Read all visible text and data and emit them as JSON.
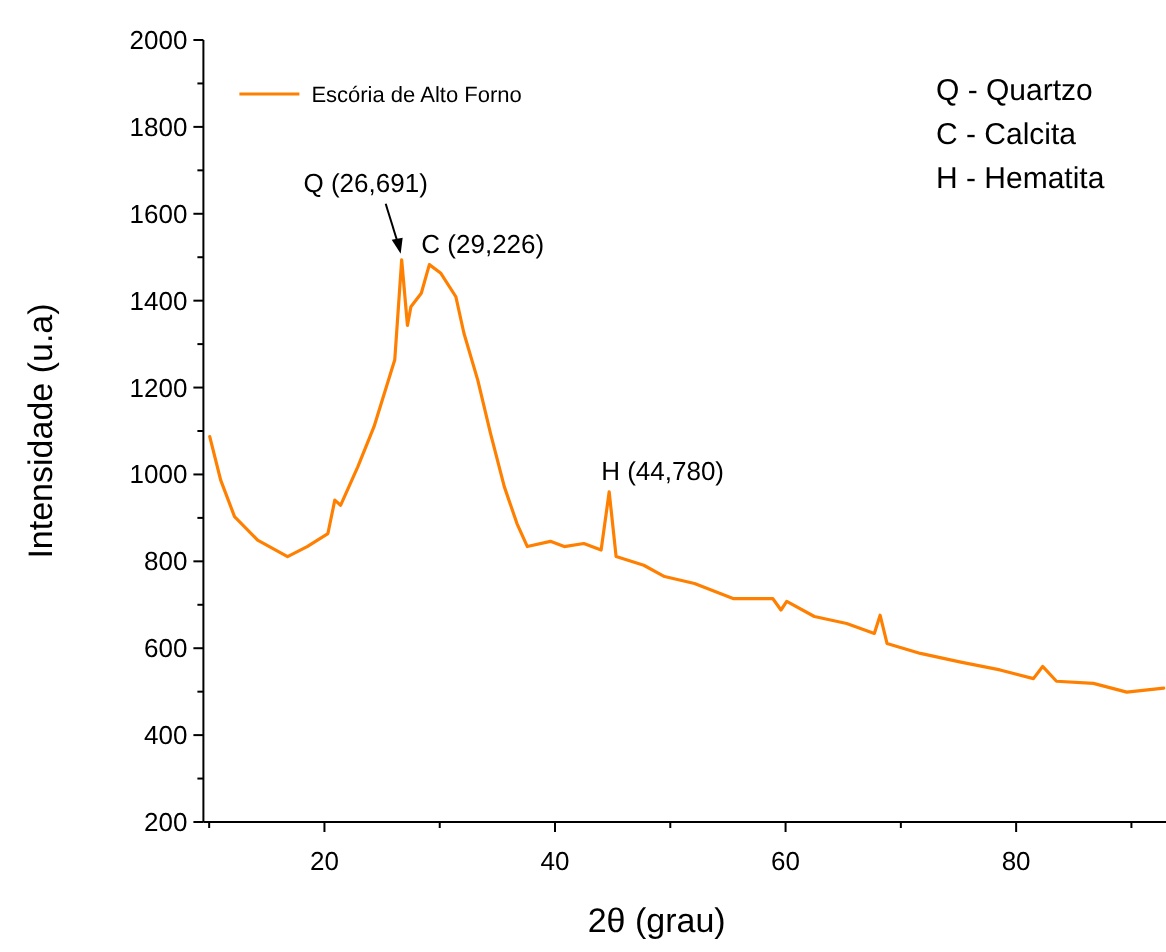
{
  "chart_data": {
    "type": "line",
    "xlabel": "2θ (grau)",
    "ylabel": "Intensidade (u.a)",
    "xlim": [
      9.5,
      93
    ],
    "ylim": [
      200,
      2000
    ],
    "xticks": [
      {
        "value": 10,
        "label": null
      },
      20,
      {
        "value": 30,
        "label": null
      },
      40,
      {
        "value": 50,
        "label": null
      },
      60,
      {
        "value": 70,
        "label": null
      },
      80,
      {
        "value": 90,
        "label": null
      }
    ],
    "yticks": [
      200,
      {
        "value": 300,
        "label": null
      },
      400,
      {
        "value": 500,
        "label": null
      },
      600,
      {
        "value": 700,
        "label": null
      },
      800,
      {
        "value": 900,
        "label": null
      },
      1000,
      {
        "value": 1100,
        "label": null
      },
      1200,
      {
        "value": 1300,
        "label": null
      },
      1400,
      {
        "value": 1500,
        "label": null
      },
      1600,
      {
        "value": 1700,
        "label": null
      },
      1800,
      {
        "value": 1900,
        "label": null
      },
      2000
    ],
    "grid": false,
    "legend": "top left",
    "line_style": "solid",
    "marker": "none",
    "series": [
      {
        "name": "Escória de Alto Forno",
        "color": "#ff8000",
        "x": [
          10.05,
          11.0,
          12.2,
          14.2,
          16.8,
          18.5,
          20.3,
          20.9,
          21.4,
          22.9,
          24.3,
          26.1,
          26.7,
          27.2,
          27.5,
          28.4,
          29.1,
          30.1,
          31.4,
          32.1,
          33.3,
          34.4,
          35.6,
          36.7,
          37.6,
          39.6,
          40.8,
          42.5,
          44.0,
          44.7,
          45.3,
          47.7,
          49.5,
          52.1,
          55.5,
          58.9,
          59.6,
          60.1,
          62.5,
          65.3,
          67.7,
          68.2,
          68.8,
          71.7,
          75.2,
          78.6,
          81.5,
          82.3,
          83.5,
          86.7,
          89.6,
          92.8
        ],
        "values": [
          1087,
          987,
          903,
          849,
          811,
          834,
          864,
          941,
          929,
          1018,
          1110,
          1264,
          1494,
          1343,
          1386,
          1417,
          1483,
          1463,
          1409,
          1325,
          1217,
          1095,
          972,
          887,
          834,
          846,
          834,
          841,
          826,
          960,
          811,
          791,
          765,
          749,
          714,
          714,
          688,
          708,
          673,
          657,
          634,
          676,
          611,
          588,
          568,
          550,
          530,
          558,
          524,
          519,
          499,
          508
        ]
      }
    ],
    "annotations": [
      {
        "text": "Q (26,691)",
        "x": 26.7,
        "y": 1494
      },
      {
        "text": "C (29,226)",
        "x": 29.1,
        "y": 1483
      },
      {
        "text": "H (44,780)",
        "x": 44.7,
        "y": 960
      },
      "Q - Quartzo",
      "C - Calcita",
      "H - Hematita"
    ]
  }
}
